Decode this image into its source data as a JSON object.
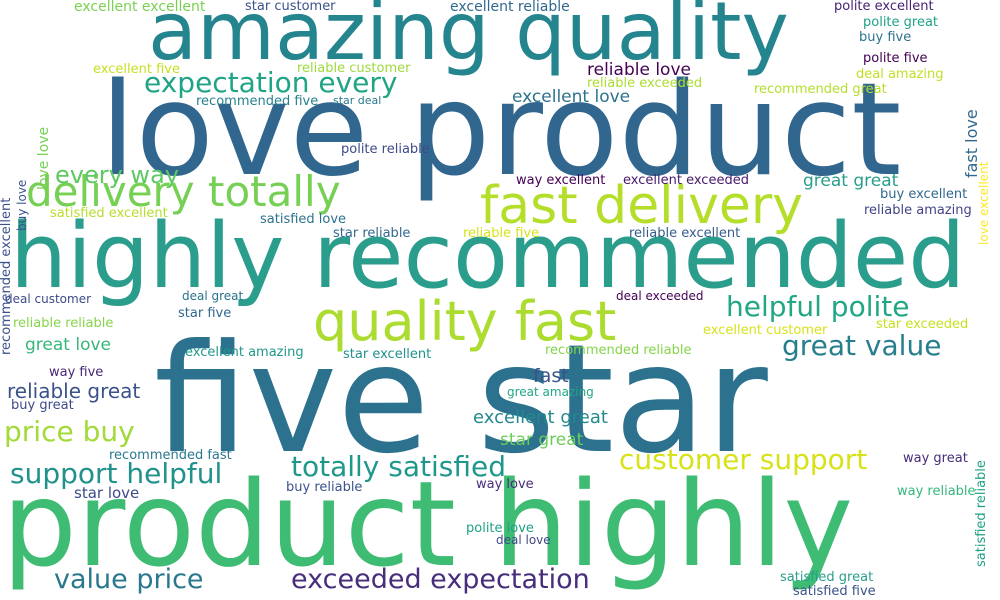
{
  "words": [
    {
      "text": "five star",
      "color": "#2c728e"
    },
    {
      "text": "product highly",
      "color": "#3fbc73"
    },
    {
      "text": "love product",
      "color": "#31668e"
    },
    {
      "text": "highly recommended",
      "color": "#2a9d8c"
    },
    {
      "text": "amazing quality",
      "color": "#25858e"
    },
    {
      "text": "quality fast",
      "color": "#addc30"
    },
    {
      "text": "fast delivery",
      "color": "#b5de2b"
    },
    {
      "text": "delivery totally",
      "color": "#75d054"
    },
    {
      "text": "expectation every",
      "color": "#20a486"
    },
    {
      "text": "helpful polite",
      "color": "#22a785"
    },
    {
      "text": "great value",
      "color": "#277f8e"
    },
    {
      "text": "customer support",
      "color": "#d8e219"
    },
    {
      "text": "totally satisfied",
      "color": "#1f988b"
    },
    {
      "text": "support helpful",
      "color": "#21918c"
    },
    {
      "text": "exceeded expectation",
      "color": "#472d7b"
    },
    {
      "text": "value price",
      "color": "#2a788e"
    },
    {
      "text": "price buy",
      "color": "#a2da37"
    },
    {
      "text": "excellent great",
      "color": "#23898e"
    },
    {
      "text": "reliable great",
      "color": "#3b528b"
    },
    {
      "text": "every way",
      "color": "#5ec962"
    },
    {
      "text": "great love",
      "color": "#35b779"
    },
    {
      "text": "star great",
      "color": "#6ccd5a"
    },
    {
      "text": "reliable love",
      "color": "#440154"
    },
    {
      "text": "excellent love",
      "color": "#2c728e"
    },
    {
      "text": "fast",
      "color": "#3b528b"
    },
    {
      "text": "great great",
      "color": "#2a9d8c"
    },
    {
      "text": "excellent excellent",
      "color": "#7ad151"
    },
    {
      "text": "star customer",
      "color": "#3b528b"
    },
    {
      "text": "excellent reliable",
      "color": "#31688e"
    },
    {
      "text": "polite excellent",
      "color": "#482173"
    },
    {
      "text": "polite great",
      "color": "#1fa187"
    },
    {
      "text": "buy five",
      "color": "#2c728e"
    },
    {
      "text": "polite five",
      "color": "#440154"
    },
    {
      "text": "deal amazing",
      "color": "#c2df23"
    },
    {
      "text": "recommended great",
      "color": "#b5de2b"
    },
    {
      "text": "reliable exceeded",
      "color": "#addc30"
    },
    {
      "text": "reliable customer",
      "color": "#9dd93b"
    },
    {
      "text": "excellent five",
      "color": "#c8e020"
    },
    {
      "text": "recommended five",
      "color": "#26828e"
    },
    {
      "text": "star deal",
      "color": "#2a788e"
    },
    {
      "text": "polite reliable",
      "color": "#3e4a89"
    },
    {
      "text": "way excellent",
      "color": "#440154"
    },
    {
      "text": "excellent exceeded",
      "color": "#481a6c"
    },
    {
      "text": "buy excellent",
      "color": "#31688e"
    },
    {
      "text": "reliable amazing",
      "color": "#414487"
    },
    {
      "text": "satisfied excellent",
      "color": "#b5de2b"
    },
    {
      "text": "satisfied love",
      "color": "#2c728e"
    },
    {
      "text": "star reliable",
      "color": "#31688e"
    },
    {
      "text": "reliable five",
      "color": "#d8e219"
    },
    {
      "text": "reliable excellent",
      "color": "#365c8d"
    },
    {
      "text": "deal customer",
      "color": "#3e4a89"
    },
    {
      "text": "deal great",
      "color": "#2c728e"
    },
    {
      "text": "deal exceeded",
      "color": "#440154"
    },
    {
      "text": "star five",
      "color": "#31688e"
    },
    {
      "text": "reliable reliable",
      "color": "#86d549"
    },
    {
      "text": "excellent customer",
      "color": "#d8e219"
    },
    {
      "text": "star exceeded",
      "color": "#c8e020"
    },
    {
      "text": "excellent amazing",
      "color": "#1f988b"
    },
    {
      "text": "star excellent",
      "color": "#21918c"
    },
    {
      "text": "recommended reliable",
      "color": "#86d549"
    },
    {
      "text": "way five",
      "color": "#482878"
    },
    {
      "text": "great amazing",
      "color": "#22a785"
    },
    {
      "text": "buy great",
      "color": "#3e4a89"
    },
    {
      "text": "recommended fast",
      "color": "#2a788e"
    },
    {
      "text": "way great",
      "color": "#472d7b"
    },
    {
      "text": "star love",
      "color": "#3e4a89"
    },
    {
      "text": "buy reliable",
      "color": "#3b528b"
    },
    {
      "text": "way love",
      "color": "#472d7b"
    },
    {
      "text": "way reliable",
      "color": "#35b779"
    },
    {
      "text": "polite love",
      "color": "#1fa187"
    },
    {
      "text": "deal love",
      "color": "#3e4a89"
    },
    {
      "text": "satisfied great",
      "color": "#2a9d8c"
    },
    {
      "text": "satisfied five",
      "color": "#3b528b"
    },
    {
      "text": "recommended excellent",
      "color": "#3b528b"
    },
    {
      "text": "love love",
      "color": "#75d054"
    },
    {
      "text": "buy love",
      "color": "#3b528b"
    },
    {
      "text": "fast love",
      "color": "#31688e"
    },
    {
      "text": "love excellent",
      "color": "#fde725"
    },
    {
      "text": "satisfied reliable",
      "color": "#1fa187"
    }
  ]
}
